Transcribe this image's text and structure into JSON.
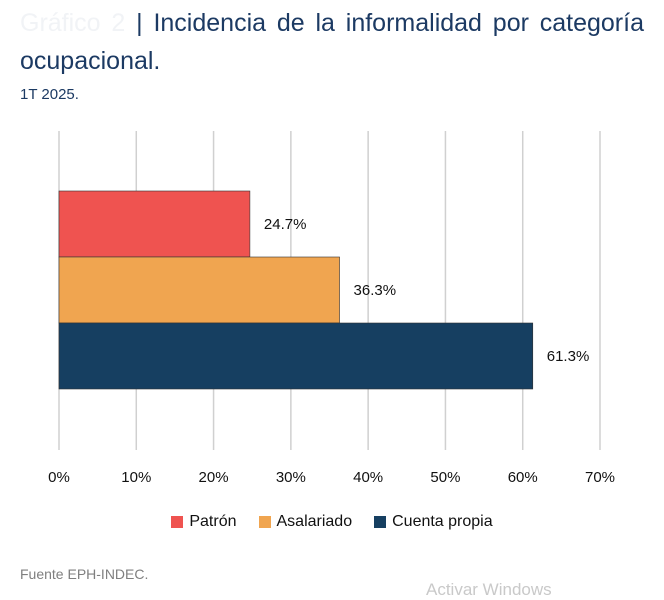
{
  "header": {
    "title_prefix": "Gráfico 2",
    "title": "| Incidencia de la informalidad por categoría ocupacional.",
    "subtitle": "1T 2025."
  },
  "chart_data": {
    "type": "bar",
    "orientation": "horizontal",
    "title": "| Incidencia de la informalidad por categoría ocupacional.",
    "subtitle": "1T 2025.",
    "series": [
      {
        "name": "Patrón",
        "value": 24.7,
        "label": "24.7%",
        "color": "#ef5350"
      },
      {
        "name": "Asalariado",
        "value": 36.3,
        "label": "36.3%",
        "color": "#f0a550"
      },
      {
        "name": "Cuenta propia",
        "value": 61.3,
        "label": "61.3%",
        "color": "#163f61"
      }
    ],
    "x_ticks": [
      "0%",
      "10%",
      "20%",
      "30%",
      "40%",
      "50%",
      "60%",
      "70%"
    ],
    "xlim": [
      0,
      70
    ],
    "grid": true,
    "legend_position": "bottom"
  },
  "legend": {
    "items": [
      {
        "label": "Patrón",
        "color": "#ef5350"
      },
      {
        "label": "Asalariado",
        "color": "#f0a550"
      },
      {
        "label": "Cuenta propia",
        "color": "#163f61"
      }
    ]
  },
  "footer": {
    "source": "Fuente EPH-INDEC.",
    "watermark": "Activar Windows"
  }
}
